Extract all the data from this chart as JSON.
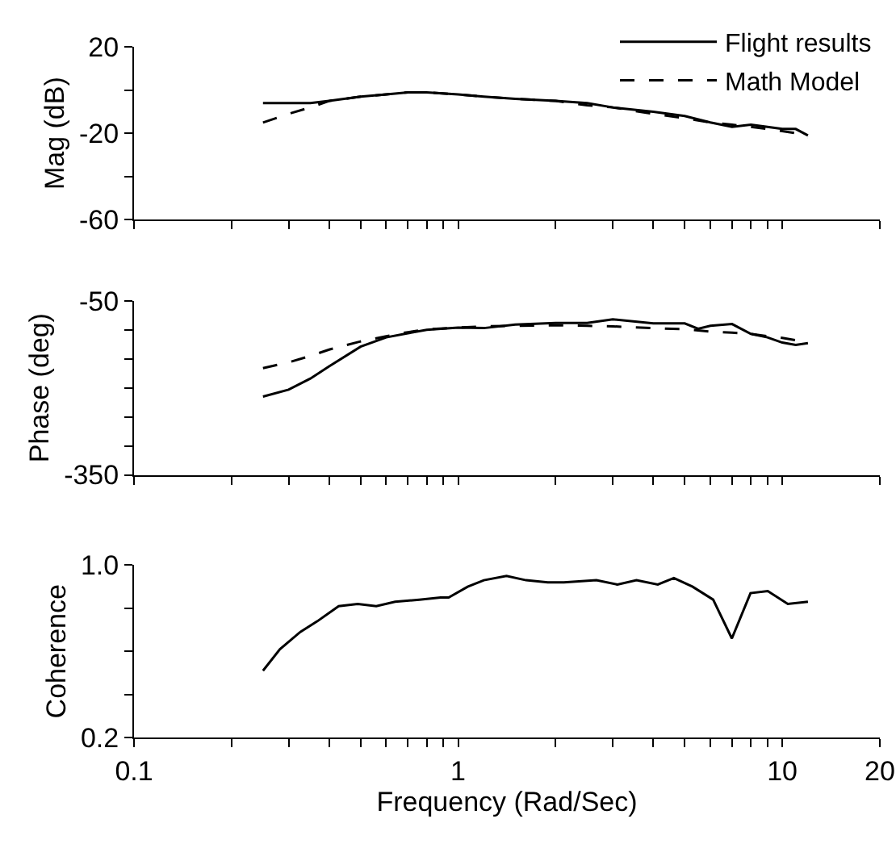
{
  "chart_data": [
    {
      "type": "line",
      "ylabel": "Mag (dB)",
      "legend": "top right",
      "log": "x",
      "tick_labels": "y",
      "x": [
        0.25,
        0.3,
        0.35,
        0.4,
        0.5,
        0.6,
        0.7,
        0.8,
        1.0,
        1.2,
        1.5,
        2,
        2.5,
        3,
        4,
        5,
        6,
        7,
        8,
        9,
        10,
        11,
        12
      ],
      "xlim": [
        0.1,
        20
      ],
      "xticks": [
        0.1,
        {
          "value": 0.2,
          "label": null
        },
        {
          "value": 0.3,
          "label": null
        },
        {
          "value": 0.4,
          "label": null
        },
        {
          "value": 0.5,
          "label": null
        },
        {
          "value": 0.6,
          "label": null
        },
        {
          "value": 0.7,
          "label": null
        },
        {
          "value": 0.8,
          "label": null
        },
        {
          "value": 0.9,
          "label": null
        },
        1,
        {
          "value": 2,
          "label": null
        },
        {
          "value": 3,
          "label": null
        },
        {
          "value": 4,
          "label": null
        },
        {
          "value": 5,
          "label": null
        },
        {
          "value": 6,
          "label": null
        },
        {
          "value": 7,
          "label": null
        },
        {
          "value": 8,
          "label": null
        },
        {
          "value": 9,
          "label": null
        },
        10,
        20
      ],
      "ylim": [
        -60,
        20
      ],
      "yticks": [
        -60,
        {
          "value": -40,
          "label": null
        },
        -20,
        {
          "value": 0,
          "label": null
        },
        20
      ],
      "series": [
        {
          "name": "Flight results",
          "color": "#000000",
          "line_style": "solid",
          "values": [
            -6,
            -6,
            -6,
            -5,
            -3,
            -2,
            -1,
            -1,
            -2,
            -3,
            -4,
            -5,
            -6,
            -8,
            -10,
            -12,
            -15,
            -17,
            -16,
            -17,
            -18,
            -18,
            -21
          ]
        },
        {
          "name": "Math Model",
          "color": "#000000",
          "line_style": "dashed",
          "values": [
            -15,
            -11,
            -8,
            -5,
            -3,
            -2,
            -1,
            -1,
            -2,
            -3,
            -4,
            -5,
            -7,
            -8,
            -11,
            -13,
            -15,
            -16,
            -17,
            -18,
            -19,
            -20,
            -22
          ]
        }
      ]
    },
    {
      "type": "line",
      "ylabel": "Phase (deg)",
      "log": "x",
      "tick_labels": "y",
      "x": [
        0.25,
        0.3,
        0.35,
        0.4,
        0.5,
        0.6,
        0.7,
        0.8,
        1.0,
        1.2,
        1.5,
        2,
        2.5,
        3,
        4,
        5,
        5.5,
        6,
        7,
        8,
        9,
        10,
        11,
        12
      ],
      "xlim": [
        0.1,
        20
      ],
      "xticks": [
        0.1,
        {
          "value": 0.2,
          "label": null
        },
        {
          "value": 0.3,
          "label": null
        },
        {
          "value": 0.4,
          "label": null
        },
        {
          "value": 0.5,
          "label": null
        },
        {
          "value": 0.6,
          "label": null
        },
        {
          "value": 0.7,
          "label": null
        },
        {
          "value": 0.8,
          "label": null
        },
        {
          "value": 0.9,
          "label": null
        },
        1,
        {
          "value": 2,
          "label": null
        },
        {
          "value": 3,
          "label": null
        },
        {
          "value": 4,
          "label": null
        },
        {
          "value": 5,
          "label": null
        },
        {
          "value": 6,
          "label": null
        },
        {
          "value": 7,
          "label": null
        },
        {
          "value": 8,
          "label": null
        },
        {
          "value": 9,
          "label": null
        },
        10,
        20
      ],
      "ylim": [
        -350,
        -50
      ],
      "yticks": [
        -350,
        {
          "value": -300,
          "label": null
        },
        {
          "value": -250,
          "label": null
        },
        {
          "value": -200,
          "label": null
        },
        {
          "value": -150,
          "label": null
        },
        {
          "value": -100,
          "label": null
        },
        -50
      ],
      "series": [
        {
          "name": "Flight results",
          "color": "#000000",
          "line_style": "solid",
          "values": [
            -215,
            -203,
            -184,
            -163,
            -129,
            -113,
            -106,
            -100,
            -96,
            -97,
            -91,
            -88,
            -88,
            -82,
            -89,
            -89,
            -98,
            -93,
            -90,
            -107,
            -113,
            -122,
            -126,
            -123
          ]
        },
        {
          "name": "Math Model",
          "color": "#000000",
          "line_style": "dashed",
          "values": [
            -166,
            -156,
            -145,
            -134,
            -120,
            -111,
            -104,
            -99,
            -96,
            -94,
            -93,
            -92,
            -93,
            -94,
            -97,
            -99,
            -101,
            -103,
            -105,
            -107,
            -111,
            -114,
            -118,
            -122
          ]
        }
      ]
    },
    {
      "type": "line",
      "ylabel": "Coherence",
      "xlabel": "Frequency (Rad/Sec)",
      "log": "x",
      "x": [
        0.25,
        0.282,
        0.326,
        0.368,
        0.428,
        0.49,
        0.559,
        0.639,
        0.759,
        0.883,
        0.935,
        1.07,
        1.2,
        1.41,
        1.62,
        1.89,
        2.12,
        2.67,
        3.1,
        3.55,
        4.13,
        4.63,
        5.29,
        6.12,
        6.99,
        7.98,
        9.02,
        10.4,
        12.0
      ],
      "xlim": [
        0.1,
        20
      ],
      "xticks": [
        0.1,
        {
          "value": 0.2,
          "label": null
        },
        {
          "value": 0.3,
          "label": null
        },
        {
          "value": 0.4,
          "label": null
        },
        {
          "value": 0.5,
          "label": null
        },
        {
          "value": 0.6,
          "label": null
        },
        {
          "value": 0.7,
          "label": null
        },
        {
          "value": 0.8,
          "label": null
        },
        {
          "value": 0.9,
          "label": null
        },
        1,
        {
          "value": 2,
          "label": null
        },
        {
          "value": 3,
          "label": null
        },
        {
          "value": 4,
          "label": null
        },
        {
          "value": 5,
          "label": null
        },
        {
          "value": 6,
          "label": null
        },
        {
          "value": 7,
          "label": null
        },
        {
          "value": 8,
          "label": null
        },
        {
          "value": 9,
          "label": null
        },
        10,
        20
      ],
      "ylim": [
        0.2,
        1.0
      ],
      "yticks": [
        {
          "value": 0.2,
          "label": "0.2"
        },
        {
          "value": 0.4,
          "label": null
        },
        {
          "value": 0.6,
          "label": null
        },
        {
          "value": 0.8,
          "label": null
        },
        {
          "value": 1.0,
          "label": "1.0"
        }
      ],
      "series": [
        {
          "color": "#000000",
          "line_style": "solid",
          "values": [
            0.51,
            0.61,
            0.69,
            0.74,
            0.81,
            0.82,
            0.81,
            0.83,
            0.84,
            0.85,
            0.85,
            0.9,
            0.93,
            0.95,
            0.93,
            0.92,
            0.92,
            0.93,
            0.91,
            0.93,
            0.91,
            0.94,
            0.9,
            0.84,
            0.66,
            0.87,
            0.88,
            0.82,
            0.83
          ]
        }
      ]
    }
  ]
}
